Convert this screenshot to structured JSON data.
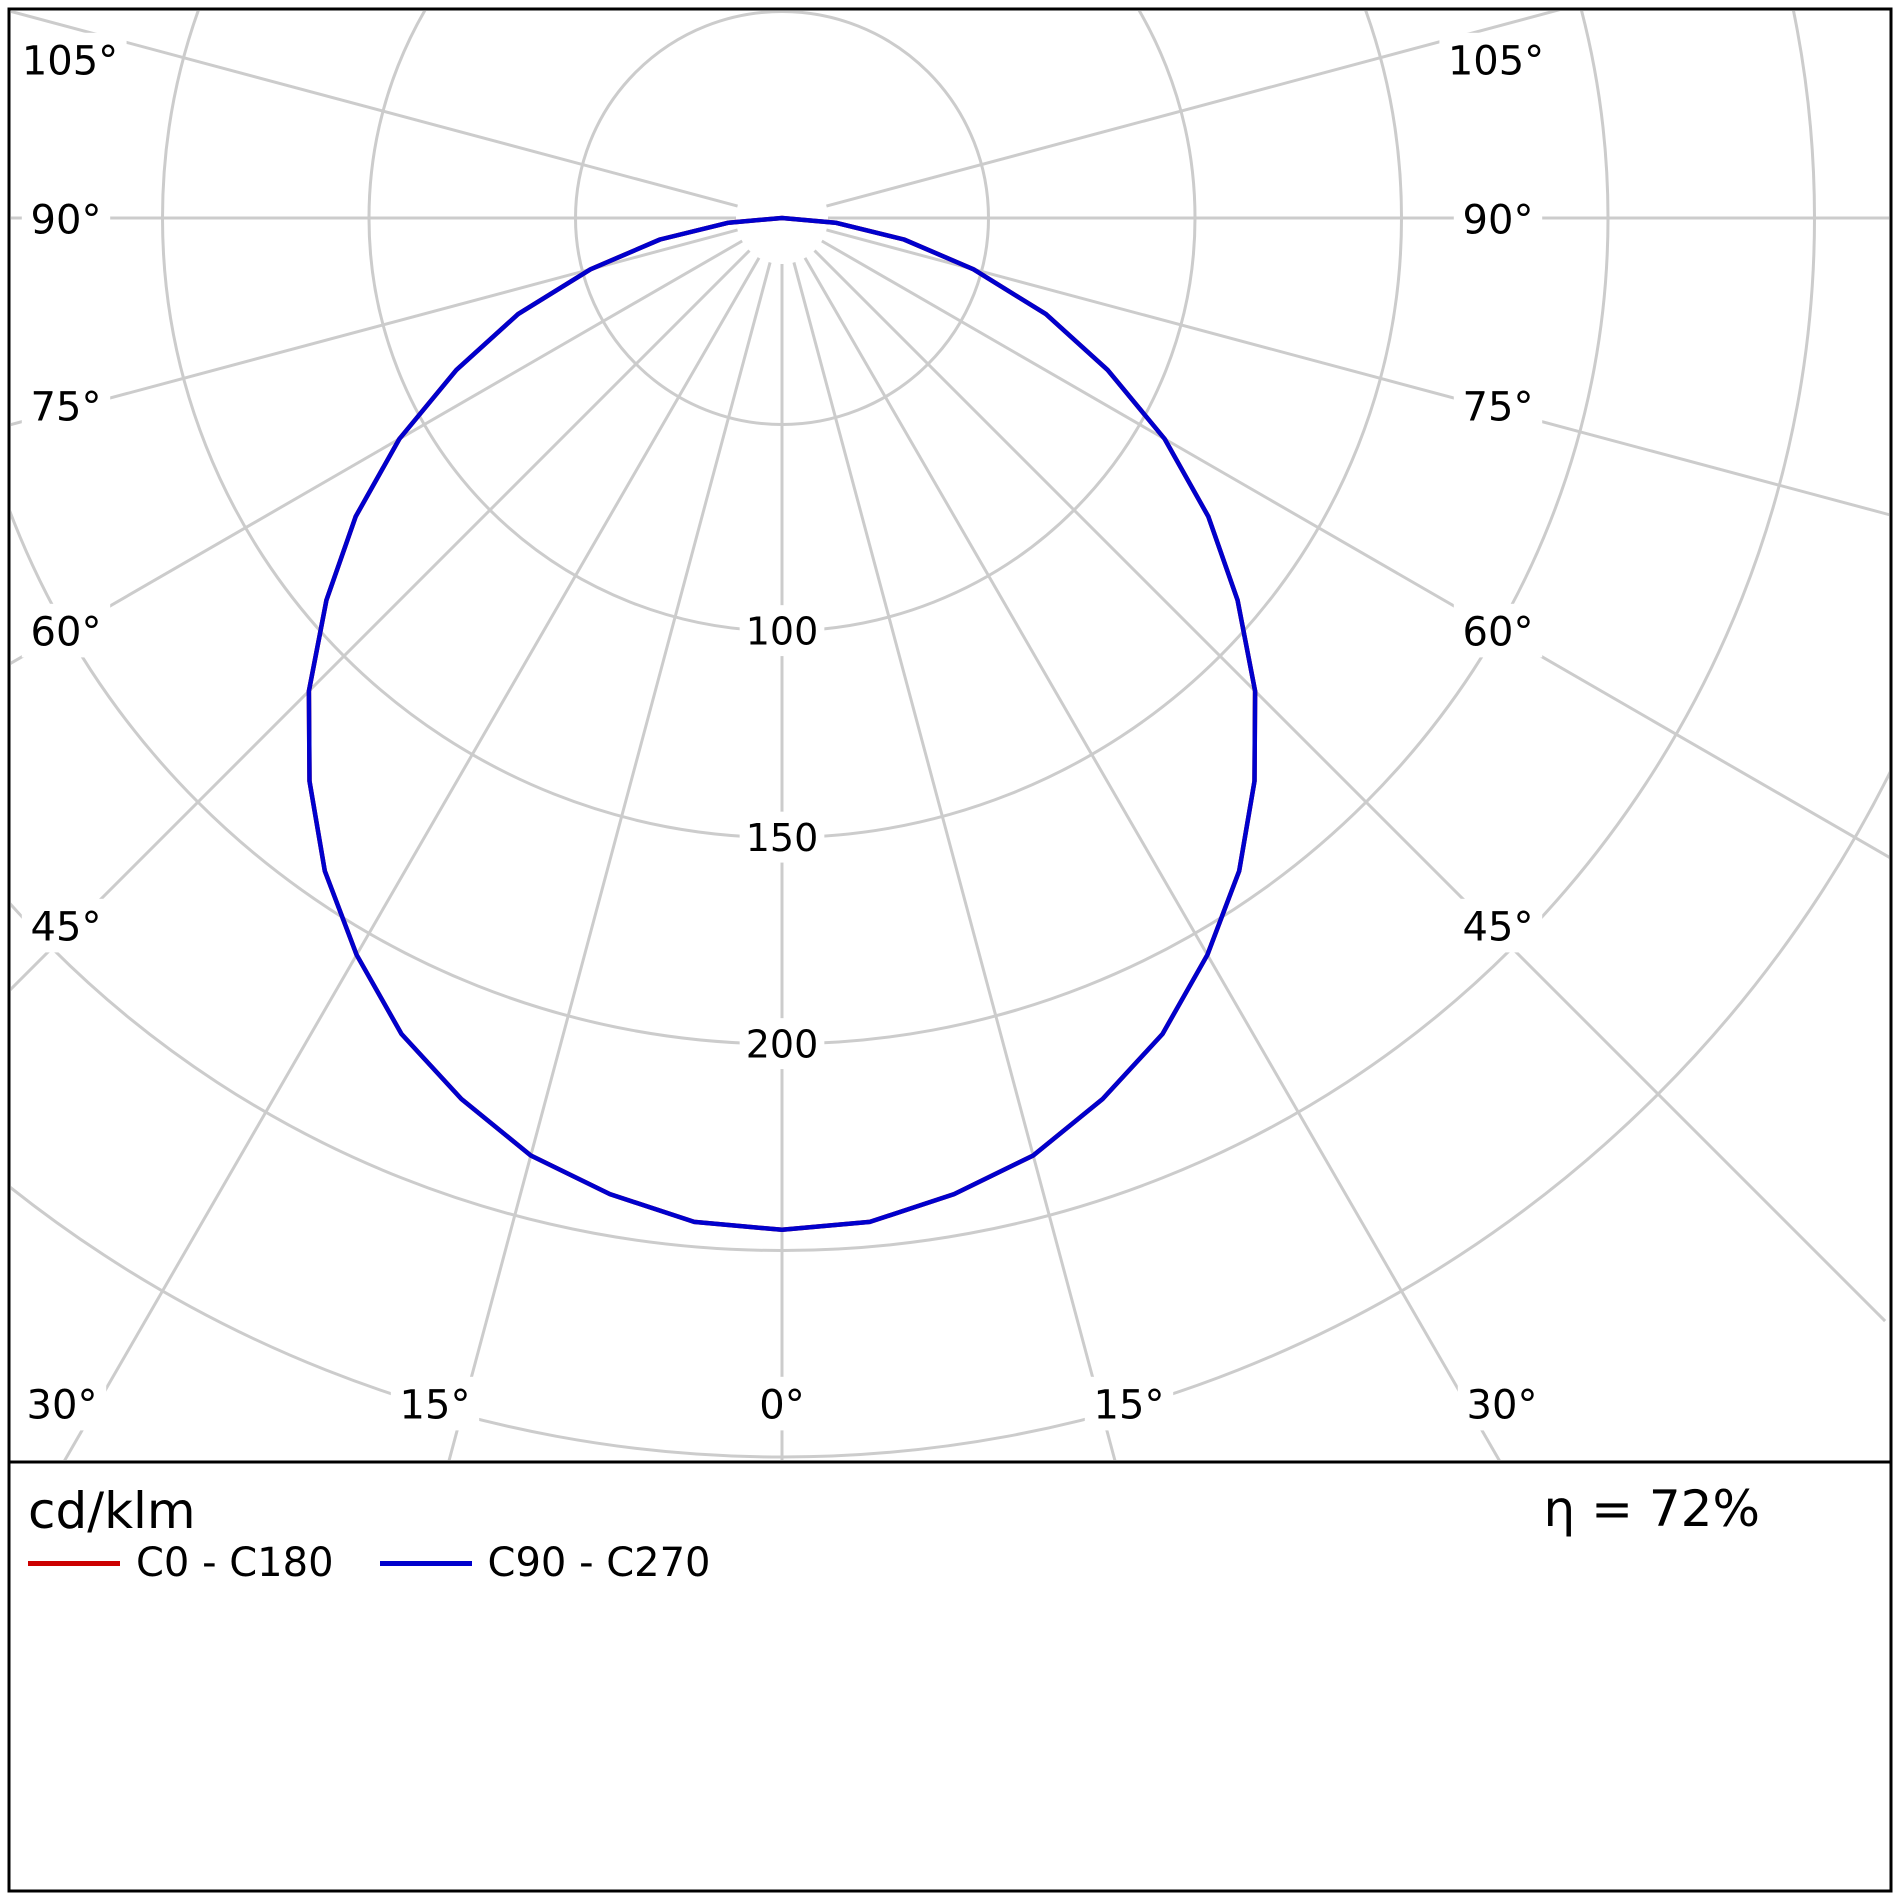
{
  "meta": {
    "unit_label": "cd/klm",
    "efficiency_label": "η = 72%"
  },
  "legend": [
    {
      "label": "C0 - C180",
      "color": "#cc0000"
    },
    {
      "label": "C90 - C270",
      "color": "#0000cc"
    }
  ],
  "chart_data": {
    "type": "line",
    "coordinate_system": "polar",
    "units": "cd/klm",
    "description": "Luminous intensity distribution curve; 0° points downward (nadir), angle ticks every 15° up to ±105°, radial gridlines every 50 cd/klm.",
    "efficiency_percent": 72,
    "angle_ticks": [
      {
        "deg": 0,
        "label": "0°"
      },
      {
        "deg": 15,
        "label": "15°"
      },
      {
        "deg": 30,
        "label": "30°"
      },
      {
        "deg": 45,
        "label": "45°"
      },
      {
        "deg": 60,
        "label": "60°"
      },
      {
        "deg": 75,
        "label": "75°"
      },
      {
        "deg": 90,
        "label": "90°"
      },
      {
        "deg": 105,
        "label": "105°"
      }
    ],
    "radius_ticks": [
      {
        "value": 100,
        "label": "100"
      },
      {
        "value": 150,
        "label": "150"
      },
      {
        "value": 200,
        "label": "200"
      }
    ],
    "radius_gridlines": [
      50,
      100,
      150,
      200,
      250,
      300
    ],
    "grid_color": "#cccccc",
    "series": [
      {
        "name": "C0 - C180",
        "color": "#cc0000",
        "points": [
          [
            -90,
            0
          ],
          [
            -85,
            13
          ],
          [
            -80,
            30
          ],
          [
            -75,
            48
          ],
          [
            -70,
            68
          ],
          [
            -65,
            87
          ],
          [
            -60,
            107
          ],
          [
            -55,
            126
          ],
          [
            -50,
            144
          ],
          [
            -45,
            162
          ],
          [
            -40,
            178
          ],
          [
            -35,
            193
          ],
          [
            -30,
            206
          ],
          [
            -25,
            218
          ],
          [
            -20,
            227
          ],
          [
            -15,
            235
          ],
          [
            -10,
            240
          ],
          [
            -5,
            244
          ],
          [
            0,
            245
          ],
          [
            5,
            244
          ],
          [
            10,
            240
          ],
          [
            15,
            235
          ],
          [
            20,
            227
          ],
          [
            25,
            218
          ],
          [
            30,
            206
          ],
          [
            35,
            193
          ],
          [
            40,
            178
          ],
          [
            45,
            162
          ],
          [
            50,
            144
          ],
          [
            55,
            126
          ],
          [
            60,
            107
          ],
          [
            65,
            87
          ],
          [
            70,
            68
          ],
          [
            75,
            48
          ],
          [
            80,
            30
          ],
          [
            85,
            13
          ],
          [
            90,
            0
          ]
        ]
      },
      {
        "name": "C90 - C270",
        "color": "#0000cc",
        "points": [
          [
            -90,
            0
          ],
          [
            -85,
            13
          ],
          [
            -80,
            30
          ],
          [
            -75,
            48
          ],
          [
            -70,
            68
          ],
          [
            -65,
            87
          ],
          [
            -60,
            107
          ],
          [
            -55,
            126
          ],
          [
            -50,
            144
          ],
          [
            -45,
            162
          ],
          [
            -40,
            178
          ],
          [
            -35,
            193
          ],
          [
            -30,
            206
          ],
          [
            -25,
            218
          ],
          [
            -20,
            227
          ],
          [
            -15,
            235
          ],
          [
            -10,
            240
          ],
          [
            -5,
            244
          ],
          [
            0,
            245
          ],
          [
            5,
            244
          ],
          [
            10,
            240
          ],
          [
            15,
            235
          ],
          [
            20,
            227
          ],
          [
            25,
            218
          ],
          [
            30,
            206
          ],
          [
            35,
            193
          ],
          [
            40,
            178
          ],
          [
            45,
            162
          ],
          [
            50,
            144
          ],
          [
            55,
            126
          ],
          [
            60,
            107
          ],
          [
            65,
            87
          ],
          [
            70,
            68
          ],
          [
            75,
            48
          ],
          [
            80,
            30
          ],
          [
            85,
            13
          ],
          [
            90,
            0
          ]
        ]
      }
    ]
  }
}
